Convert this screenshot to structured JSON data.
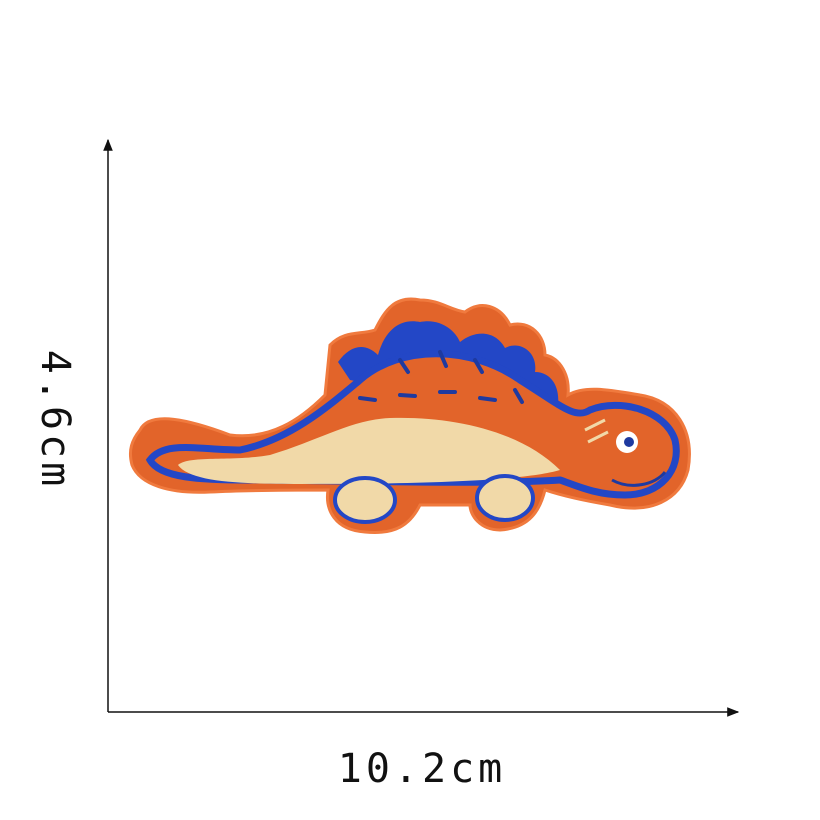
{
  "dimensions": {
    "height": "4.6cm",
    "width": "10.2cm"
  }
}
